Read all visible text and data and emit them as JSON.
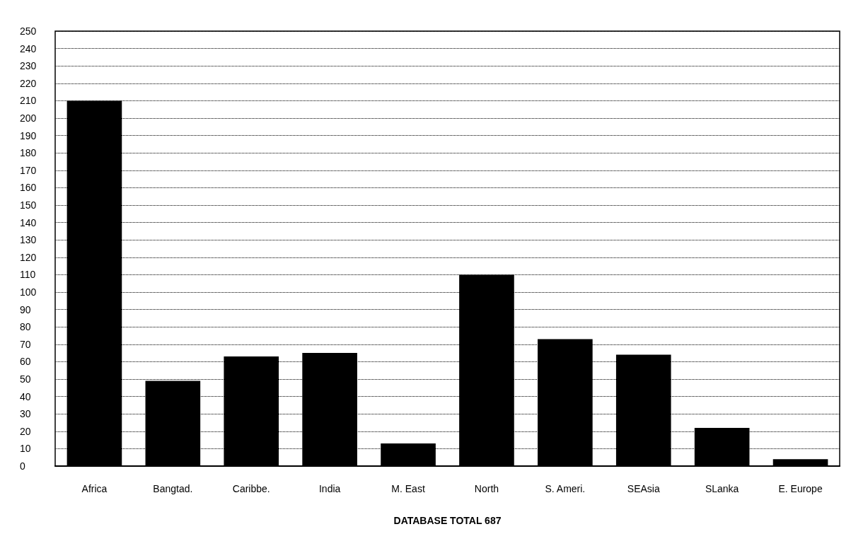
{
  "chart_data": {
    "type": "bar",
    "xlabel": "DATABASE TOTAL 687",
    "categories": [
      "Africa",
      "Bangtad.",
      "Caribbe.",
      "India",
      "M. East",
      "North",
      "S. Ameri.",
      "SEAsia",
      "SLanka",
      "E. Europe"
    ],
    "values": [
      210,
      49,
      63,
      65,
      13,
      110,
      73,
      64,
      22,
      4
    ],
    "color": "#000000",
    "ylim": [
      0,
      250
    ],
    "yticks": [
      0,
      10,
      20,
      30,
      40,
      50,
      60,
      70,
      80,
      90,
      100,
      110,
      120,
      130,
      140,
      150,
      160,
      170,
      180,
      190,
      200,
      210,
      220,
      230,
      240,
      250
    ],
    "grid": "y"
  }
}
